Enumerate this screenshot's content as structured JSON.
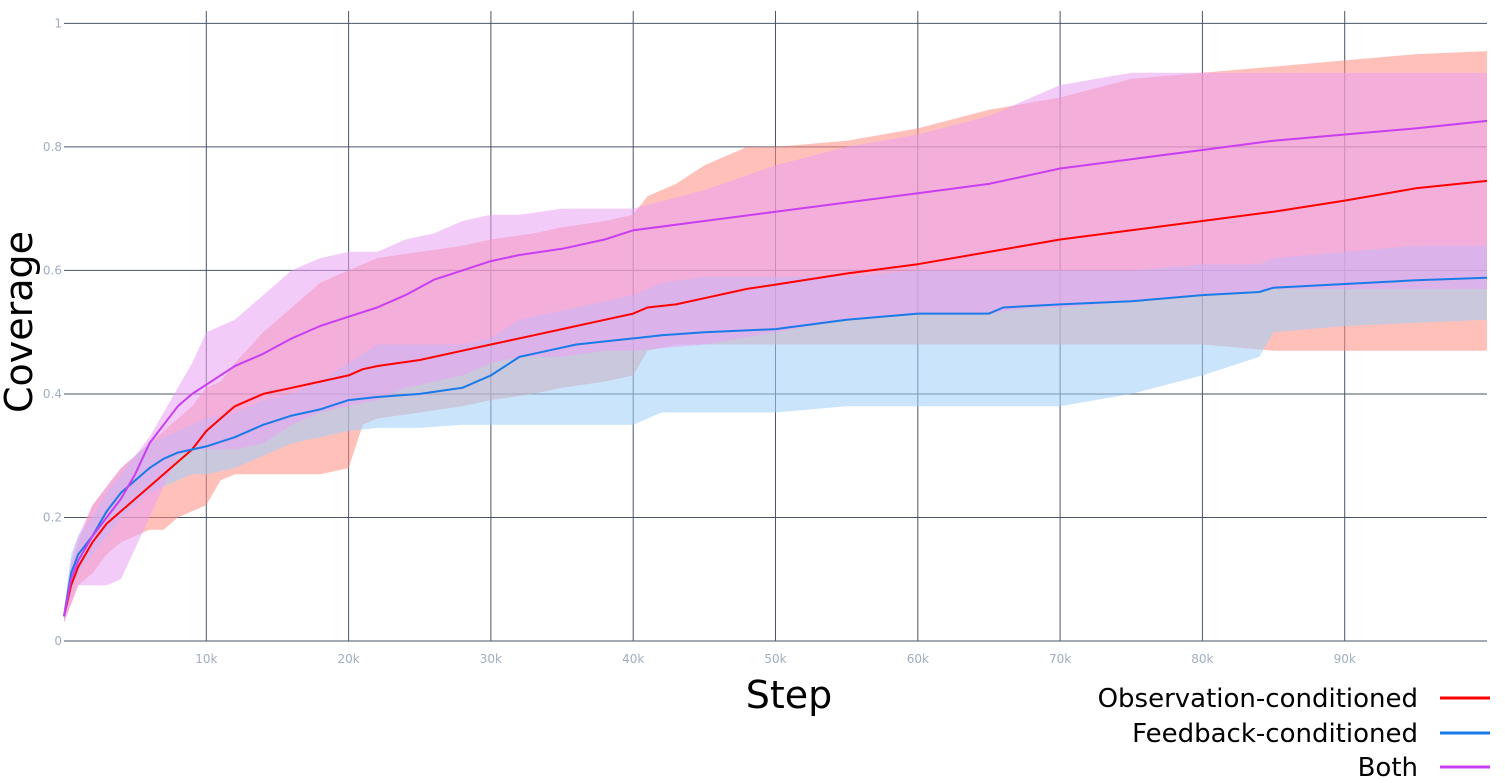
{
  "chart_data": {
    "type": "line",
    "xlabel": "Step",
    "ylabel": "Coverage",
    "xlim": [
      0,
      100000
    ],
    "ylim": [
      0,
      1.02
    ],
    "x_ticks": [
      10000,
      20000,
      30000,
      40000,
      50000,
      60000,
      70000,
      80000,
      90000
    ],
    "x_tick_labels": [
      "10k",
      "20k",
      "30k",
      "40k",
      "50k",
      "60k",
      "70k",
      "80k",
      "90k"
    ],
    "y_ticks": [
      0,
      0.2,
      0.4,
      0.6,
      0.8,
      1
    ],
    "y_tick_labels": [
      "0",
      "0.2",
      "0.4",
      "0.6",
      "0.8",
      "1"
    ],
    "grid": true,
    "legend_position": "bottom-right",
    "series": [
      {
        "name": "Observation-conditioned",
        "color": "#ff0000",
        "band_color": "#ff8c82",
        "x": [
          0,
          500,
          1000,
          2000,
          3000,
          4000,
          5000,
          6000,
          7000,
          8000,
          9000,
          10000,
          11000,
          12000,
          14000,
          16000,
          18000,
          20000,
          21000,
          22000,
          25000,
          28000,
          30000,
          33000,
          35000,
          38000,
          40000,
          41000,
          43000,
          45000,
          48000,
          50000,
          55000,
          60000,
          65000,
          70000,
          75000,
          80000,
          85000,
          90000,
          95000,
          100000
        ],
        "mean": [
          0.04,
          0.09,
          0.12,
          0.16,
          0.19,
          0.21,
          0.23,
          0.25,
          0.27,
          0.29,
          0.31,
          0.34,
          0.36,
          0.38,
          0.4,
          0.41,
          0.42,
          0.43,
          0.44,
          0.445,
          0.455,
          0.47,
          0.48,
          0.495,
          0.505,
          0.52,
          0.53,
          0.54,
          0.545,
          0.555,
          0.57,
          0.577,
          0.595,
          0.61,
          0.63,
          0.65,
          0.665,
          0.68,
          0.695,
          0.713,
          0.733,
          0.745
        ],
        "lower": [
          0.03,
          0.06,
          0.09,
          0.11,
          0.14,
          0.16,
          0.17,
          0.18,
          0.18,
          0.2,
          0.21,
          0.22,
          0.26,
          0.27,
          0.27,
          0.27,
          0.27,
          0.28,
          0.35,
          0.36,
          0.37,
          0.38,
          0.39,
          0.4,
          0.41,
          0.42,
          0.43,
          0.47,
          0.48,
          0.48,
          0.48,
          0.48,
          0.48,
          0.48,
          0.48,
          0.48,
          0.48,
          0.48,
          0.47,
          0.47,
          0.47,
          0.47
        ],
        "upper": [
          0.05,
          0.12,
          0.16,
          0.22,
          0.25,
          0.28,
          0.3,
          0.32,
          0.34,
          0.36,
          0.38,
          0.41,
          0.42,
          0.45,
          0.5,
          0.54,
          0.58,
          0.6,
          0.61,
          0.62,
          0.63,
          0.64,
          0.65,
          0.66,
          0.67,
          0.68,
          0.69,
          0.72,
          0.74,
          0.77,
          0.8,
          0.8,
          0.81,
          0.83,
          0.86,
          0.88,
          0.91,
          0.92,
          0.93,
          0.94,
          0.95,
          0.955
        ]
      },
      {
        "name": "Feedback-conditioned",
        "color": "#1a7ae8",
        "band_color": "#9fcdf7",
        "x": [
          0,
          500,
          1000,
          2000,
          3000,
          4000,
          5000,
          6000,
          7000,
          8000,
          9000,
          10000,
          12000,
          14000,
          16000,
          18000,
          20000,
          22000,
          25000,
          28000,
          30000,
          32000,
          34000,
          36000,
          40000,
          42000,
          45000,
          50000,
          55000,
          60000,
          65000,
          66000,
          70000,
          75000,
          80000,
          84000,
          85000,
          90000,
          95000,
          100000
        ],
        "mean": [
          0.04,
          0.11,
          0.14,
          0.17,
          0.21,
          0.24,
          0.26,
          0.28,
          0.295,
          0.305,
          0.31,
          0.315,
          0.33,
          0.35,
          0.365,
          0.375,
          0.39,
          0.395,
          0.4,
          0.41,
          0.43,
          0.46,
          0.47,
          0.48,
          0.49,
          0.495,
          0.5,
          0.505,
          0.52,
          0.53,
          0.53,
          0.54,
          0.545,
          0.55,
          0.56,
          0.565,
          0.572,
          0.578,
          0.584,
          0.588
        ],
        "lower": [
          0.03,
          0.08,
          0.11,
          0.14,
          0.17,
          0.2,
          0.22,
          0.24,
          0.25,
          0.26,
          0.27,
          0.27,
          0.28,
          0.3,
          0.32,
          0.33,
          0.34,
          0.345,
          0.345,
          0.35,
          0.35,
          0.35,
          0.35,
          0.35,
          0.35,
          0.37,
          0.37,
          0.37,
          0.38,
          0.38,
          0.38,
          0.38,
          0.38,
          0.4,
          0.43,
          0.46,
          0.5,
          0.51,
          0.515,
          0.52
        ],
        "upper": [
          0.05,
          0.14,
          0.17,
          0.2,
          0.24,
          0.27,
          0.3,
          0.32,
          0.33,
          0.34,
          0.35,
          0.36,
          0.37,
          0.39,
          0.4,
          0.42,
          0.45,
          0.48,
          0.48,
          0.48,
          0.49,
          0.52,
          0.53,
          0.54,
          0.56,
          0.58,
          0.59,
          0.59,
          0.59,
          0.6,
          0.6,
          0.6,
          0.6,
          0.6,
          0.61,
          0.61,
          0.62,
          0.63,
          0.64,
          0.64
        ]
      },
      {
        "name": "Both",
        "color": "#c93ef0",
        "band_color": "#e9a0f4",
        "x": [
          0,
          500,
          1000,
          2000,
          3000,
          4000,
          5000,
          6000,
          7000,
          8000,
          9000,
          10000,
          12000,
          14000,
          16000,
          18000,
          20000,
          22000,
          24000,
          26000,
          28000,
          30000,
          32000,
          35000,
          38000,
          40000,
          45000,
          50000,
          55000,
          60000,
          65000,
          68000,
          70000,
          75000,
          80000,
          85000,
          90000,
          95000,
          100000
        ],
        "mean": [
          0.04,
          0.1,
          0.13,
          0.17,
          0.2,
          0.23,
          0.27,
          0.32,
          0.35,
          0.38,
          0.4,
          0.415,
          0.445,
          0.465,
          0.49,
          0.51,
          0.525,
          0.54,
          0.56,
          0.585,
          0.6,
          0.615,
          0.625,
          0.635,
          0.65,
          0.665,
          0.68,
          0.695,
          0.71,
          0.725,
          0.74,
          0.755,
          0.765,
          0.78,
          0.795,
          0.81,
          0.82,
          0.83,
          0.842
        ],
        "lower": [
          0.03,
          0.06,
          0.09,
          0.09,
          0.09,
          0.1,
          0.15,
          0.2,
          0.25,
          0.3,
          0.31,
          0.31,
          0.31,
          0.32,
          0.35,
          0.37,
          0.38,
          0.39,
          0.41,
          0.42,
          0.43,
          0.45,
          0.46,
          0.46,
          0.47,
          0.47,
          0.48,
          0.5,
          0.52,
          0.53,
          0.53,
          0.54,
          0.54,
          0.55,
          0.56,
          0.57,
          0.57,
          0.57,
          0.57
        ],
        "upper": [
          0.05,
          0.13,
          0.17,
          0.22,
          0.25,
          0.28,
          0.3,
          0.33,
          0.37,
          0.41,
          0.45,
          0.5,
          0.52,
          0.56,
          0.6,
          0.62,
          0.63,
          0.63,
          0.65,
          0.66,
          0.68,
          0.69,
          0.69,
          0.7,
          0.7,
          0.7,
          0.73,
          0.77,
          0.8,
          0.82,
          0.85,
          0.88,
          0.9,
          0.92,
          0.92,
          0.92,
          0.92,
          0.92,
          0.92
        ]
      }
    ]
  }
}
